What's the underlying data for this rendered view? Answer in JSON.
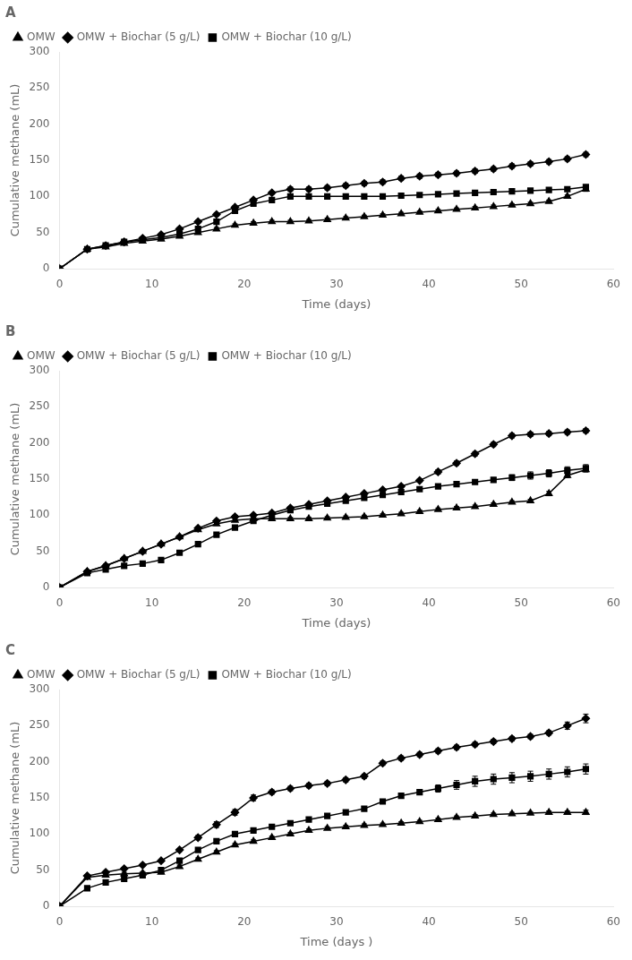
{
  "chart_data": [
    {
      "type": "line",
      "title": "A",
      "xlabel": "Time (days)",
      "ylabel": "Cumulative methane (mL)",
      "x": [
        0,
        3,
        5,
        7,
        9,
        11,
        13,
        15,
        17,
        19,
        21,
        23,
        25,
        27,
        29,
        31,
        33,
        35,
        37,
        39,
        41,
        43,
        45,
        47,
        49,
        51,
        53,
        55,
        57
      ],
      "series": [
        {
          "name": "OMW",
          "color": "#000000",
          "marker": "triangle",
          "values": [
            0,
            27,
            30,
            35,
            38,
            41,
            45,
            50,
            55,
            60,
            63,
            65,
            65,
            66,
            68,
            70,
            72,
            74,
            76,
            78,
            80,
            82,
            84,
            86,
            88,
            90,
            93,
            100,
            110
          ],
          "errors": [
            0,
            2,
            2,
            2,
            2,
            2,
            2,
            2,
            2,
            2,
            2,
            2,
            2,
            2,
            2,
            2,
            2,
            2,
            2,
            2,
            2,
            2,
            2,
            2,
            2,
            2,
            2,
            2,
            3
          ]
        },
        {
          "name": "OMW + Biochar (5 g/L)",
          "color": "#000000",
          "marker": "diamond",
          "values": [
            0,
            27,
            32,
            37,
            42,
            47,
            55,
            65,
            75,
            85,
            95,
            105,
            110,
            110,
            112,
            115,
            118,
            120,
            125,
            128,
            130,
            132,
            135,
            138,
            142,
            145,
            148,
            152,
            158
          ],
          "errors": [
            0,
            2,
            2,
            2,
            2,
            2,
            2,
            2,
            2,
            2,
            2,
            2,
            3,
            3,
            3,
            3,
            3,
            3,
            3,
            3,
            3,
            3,
            3,
            3,
            3,
            3,
            3,
            3,
            3
          ]
        },
        {
          "name": "OMW + Biochar (10 g/L)",
          "color": "#000000",
          "marker": "square",
          "values": [
            0,
            27,
            32,
            37,
            40,
            43,
            48,
            55,
            65,
            80,
            90,
            95,
            100,
            100,
            100,
            100,
            100,
            100,
            101,
            102,
            103,
            104,
            105,
            106,
            107,
            108,
            109,
            110,
            113
          ],
          "errors": [
            0,
            2,
            2,
            2,
            2,
            2,
            2,
            2,
            2,
            2,
            2,
            2,
            2,
            2,
            2,
            2,
            2,
            2,
            2,
            2,
            2,
            2,
            2,
            2,
            2,
            2,
            2,
            2,
            3
          ]
        }
      ],
      "xlim": [
        0,
        60
      ],
      "xticks": [
        0,
        10,
        20,
        30,
        40,
        50,
        60
      ],
      "ylim": [
        0,
        300
      ],
      "yticks": [
        0,
        50,
        100,
        150,
        200,
        250,
        300
      ],
      "grid": false,
      "legend": "upper left"
    },
    {
      "type": "line",
      "title": "B",
      "xlabel": "Time (days)",
      "ylabel": "Cumulative methane (mL)",
      "x": [
        0,
        3,
        5,
        7,
        9,
        11,
        13,
        15,
        17,
        19,
        21,
        23,
        25,
        27,
        29,
        31,
        33,
        35,
        37,
        39,
        41,
        43,
        45,
        47,
        49,
        51,
        53,
        55,
        57
      ],
      "series": [
        {
          "name": "OMW",
          "color": "#000000",
          "marker": "triangle",
          "values": [
            0,
            22,
            30,
            40,
            50,
            60,
            70,
            80,
            88,
            93,
            95,
            95,
            95,
            95,
            96,
            97,
            98,
            100,
            102,
            105,
            108,
            110,
            112,
            115,
            118,
            120,
            130,
            155,
            163
          ],
          "errors": [
            0,
            2,
            2,
            2,
            2,
            2,
            2,
            2,
            2,
            2,
            2,
            2,
            2,
            2,
            2,
            2,
            2,
            2,
            2,
            2,
            2,
            2,
            2,
            2,
            2,
            2,
            3,
            3,
            3
          ]
        },
        {
          "name": "OMW + Biochar (5 g/L)",
          "color": "#000000",
          "marker": "diamond",
          "values": [
            0,
            22,
            30,
            40,
            50,
            60,
            70,
            82,
            92,
            98,
            100,
            103,
            110,
            115,
            120,
            125,
            130,
            135,
            140,
            148,
            160,
            172,
            185,
            198,
            210,
            212,
            213,
            215,
            217
          ],
          "errors": [
            0,
            2,
            2,
            2,
            2,
            2,
            2,
            2,
            2,
            2,
            2,
            2,
            2,
            2,
            2,
            2,
            2,
            2,
            2,
            2,
            3,
            3,
            3,
            3,
            3,
            3,
            3,
            3,
            3
          ]
        },
        {
          "name": "OMW + Biochar (10 g/L)",
          "color": "#000000",
          "marker": "square",
          "values": [
            0,
            20,
            25,
            30,
            33,
            38,
            48,
            60,
            73,
            83,
            92,
            100,
            107,
            112,
            116,
            120,
            124,
            128,
            132,
            136,
            140,
            143,
            146,
            149,
            152,
            155,
            158,
            162,
            165
          ],
          "errors": [
            0,
            2,
            2,
            2,
            2,
            2,
            2,
            2,
            2,
            2,
            2,
            2,
            2,
            2,
            2,
            2,
            2,
            2,
            2,
            2,
            3,
            3,
            3,
            3,
            4,
            5,
            5,
            5,
            5
          ]
        }
      ],
      "xlim": [
        0,
        60
      ],
      "xticks": [
        0,
        10,
        20,
        30,
        40,
        50,
        60
      ],
      "ylim": [
        0,
        300
      ],
      "yticks": [
        0,
        50,
        100,
        150,
        200,
        250,
        300
      ],
      "grid": false,
      "legend": "upper left"
    },
    {
      "type": "line",
      "title": "C",
      "xlabel": "Time (days )",
      "ylabel": "Cumulative methane (mL)",
      "x": [
        0,
        3,
        5,
        7,
        9,
        11,
        13,
        15,
        17,
        19,
        21,
        23,
        25,
        27,
        29,
        31,
        33,
        35,
        37,
        39,
        41,
        43,
        45,
        47,
        49,
        51,
        53,
        55,
        57
      ],
      "series": [
        {
          "name": "OMW",
          "color": "#000000",
          "marker": "triangle",
          "values": [
            0,
            40,
            43,
            45,
            46,
            47,
            55,
            65,
            75,
            85,
            90,
            95,
            100,
            105,
            108,
            110,
            112,
            113,
            115,
            117,
            120,
            123,
            125,
            127,
            128,
            129,
            130,
            130,
            130
          ],
          "errors": [
            0,
            2,
            2,
            2,
            2,
            2,
            2,
            2,
            2,
            2,
            2,
            2,
            2,
            2,
            2,
            2,
            2,
            2,
            2,
            2,
            2,
            2,
            2,
            2,
            2,
            2,
            2,
            2,
            3
          ]
        },
        {
          "name": "OMW + Biochar (5 g/L)",
          "color": "#000000",
          "marker": "diamond",
          "values": [
            0,
            42,
            47,
            52,
            57,
            63,
            78,
            95,
            113,
            130,
            150,
            158,
            163,
            167,
            170,
            175,
            180,
            198,
            205,
            210,
            215,
            220,
            224,
            228,
            232,
            235,
            240,
            250,
            260
          ],
          "errors": [
            0,
            2,
            2,
            2,
            2,
            2,
            2,
            3,
            4,
            4,
            4,
            3,
            3,
            3,
            3,
            3,
            3,
            3,
            3,
            3,
            3,
            3,
            3,
            3,
            3,
            3,
            3,
            5,
            6
          ]
        },
        {
          "name": "OMW + Biochar (10 g/L)",
          "color": "#000000",
          "marker": "square",
          "values": [
            0,
            25,
            33,
            38,
            43,
            50,
            63,
            78,
            90,
            100,
            105,
            110,
            115,
            120,
            125,
            130,
            135,
            145,
            153,
            158,
            163,
            168,
            173,
            176,
            178,
            180,
            183,
            186,
            190
          ],
          "errors": [
            0,
            2,
            2,
            2,
            2,
            2,
            2,
            2,
            2,
            2,
            2,
            2,
            2,
            2,
            3,
            3,
            3,
            3,
            3,
            3,
            5,
            6,
            7,
            7,
            7,
            7,
            7,
            7,
            7
          ]
        }
      ],
      "xlim": [
        0,
        60
      ],
      "xticks": [
        0,
        10,
        20,
        30,
        40,
        50,
        60
      ],
      "ylim": [
        0,
        300
      ],
      "yticks": [
        0,
        50,
        100,
        150,
        200,
        250,
        300
      ],
      "grid": false,
      "legend": "upper left"
    }
  ]
}
